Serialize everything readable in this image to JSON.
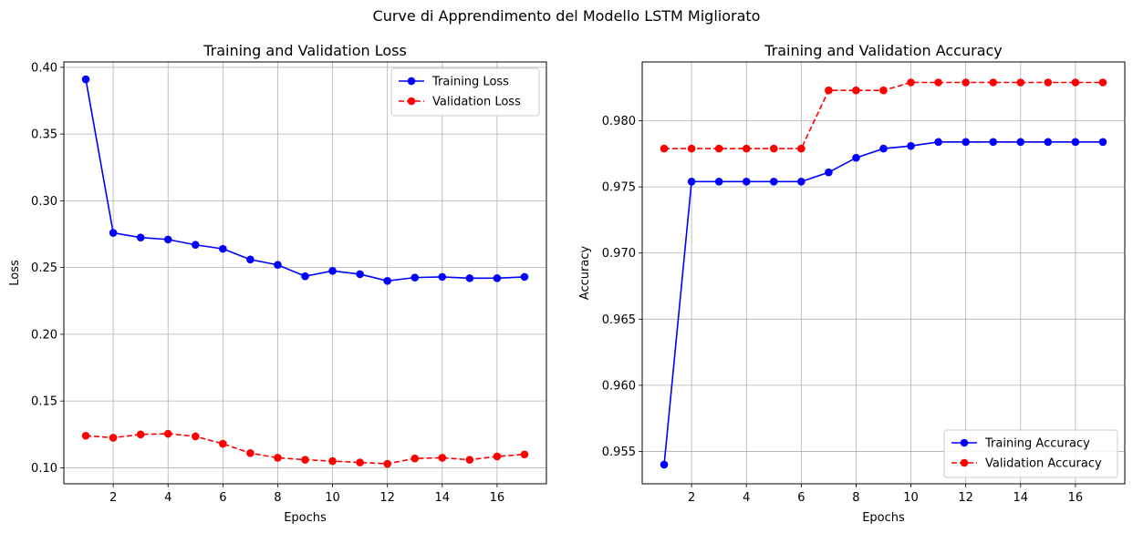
{
  "figure": {
    "suptitle": "Curve di Apprendimento del Modello LSTM Migliorato"
  },
  "chart_data": [
    {
      "type": "line",
      "title": "Training and Validation Loss",
      "xlabel": "Epochs",
      "ylabel": "Loss",
      "x": [
        1,
        2,
        3,
        4,
        5,
        6,
        7,
        8,
        9,
        10,
        11,
        12,
        13,
        14,
        15,
        16,
        17
      ],
      "xlim": [
        0.2,
        17.8
      ],
      "ylim": [
        0.088,
        0.404
      ],
      "xticks": [
        2,
        4,
        6,
        8,
        10,
        12,
        14,
        16
      ],
      "xtick_labels": [
        "2",
        "4",
        "6",
        "8",
        "10",
        "12",
        "14",
        "16"
      ],
      "yticks": [
        0.1,
        0.15,
        0.2,
        0.25,
        0.3,
        0.35,
        0.4
      ],
      "ytick_labels": [
        "0.10",
        "0.15",
        "0.20",
        "0.25",
        "0.30",
        "0.35",
        "0.40"
      ],
      "grid": true,
      "legend_position": "top-right",
      "series": [
        {
          "name": "Training Loss",
          "color": "#0000ff",
          "dashed": false,
          "values": [
            0.391,
            0.276,
            0.2725,
            0.271,
            0.267,
            0.264,
            0.256,
            0.252,
            0.2435,
            0.2475,
            0.245,
            0.24,
            0.2425,
            0.243,
            0.242,
            0.242,
            0.243
          ]
        },
        {
          "name": "Validation Loss",
          "color": "#ff0000",
          "dashed": true,
          "values": [
            0.124,
            0.1225,
            0.125,
            0.1255,
            0.1235,
            0.118,
            0.111,
            0.1075,
            0.106,
            0.105,
            0.104,
            0.103,
            0.107,
            0.1075,
            0.106,
            0.1085,
            0.11
          ]
        }
      ]
    },
    {
      "type": "line",
      "title": "Training and Validation Accuracy",
      "xlabel": "Epochs",
      "ylabel": "Accuracy",
      "x": [
        1,
        2,
        3,
        4,
        5,
        6,
        7,
        8,
        9,
        10,
        11,
        12,
        13,
        14,
        15,
        16,
        17
      ],
      "xlim": [
        0.2,
        17.8
      ],
      "ylim": [
        0.95255,
        0.98445
      ],
      "xticks": [
        2,
        4,
        6,
        8,
        10,
        12,
        14,
        16
      ],
      "xtick_labels": [
        "2",
        "4",
        "6",
        "8",
        "10",
        "12",
        "14",
        "16"
      ],
      "yticks": [
        0.955,
        0.96,
        0.965,
        0.97,
        0.975,
        0.98
      ],
      "ytick_labels": [
        "0.955",
        "0.960",
        "0.965",
        "0.970",
        "0.975",
        "0.980"
      ],
      "grid": true,
      "legend_position": "bottom-right",
      "series": [
        {
          "name": "Training Accuracy",
          "color": "#0000ff",
          "dashed": false,
          "values": [
            0.954,
            0.9754,
            0.9754,
            0.9754,
            0.9754,
            0.9754,
            0.9761,
            0.9772,
            0.9779,
            0.9781,
            0.9784,
            0.9784,
            0.9784,
            0.9784,
            0.9784,
            0.9784,
            0.9784
          ]
        },
        {
          "name": "Validation Accuracy",
          "color": "#ff0000",
          "dashed": true,
          "values": [
            0.9779,
            0.9779,
            0.9779,
            0.9779,
            0.9779,
            0.9779,
            0.9823,
            0.9823,
            0.9823,
            0.9829,
            0.9829,
            0.9829,
            0.9829,
            0.9829,
            0.9829,
            0.9829,
            0.9829
          ]
        }
      ]
    }
  ]
}
